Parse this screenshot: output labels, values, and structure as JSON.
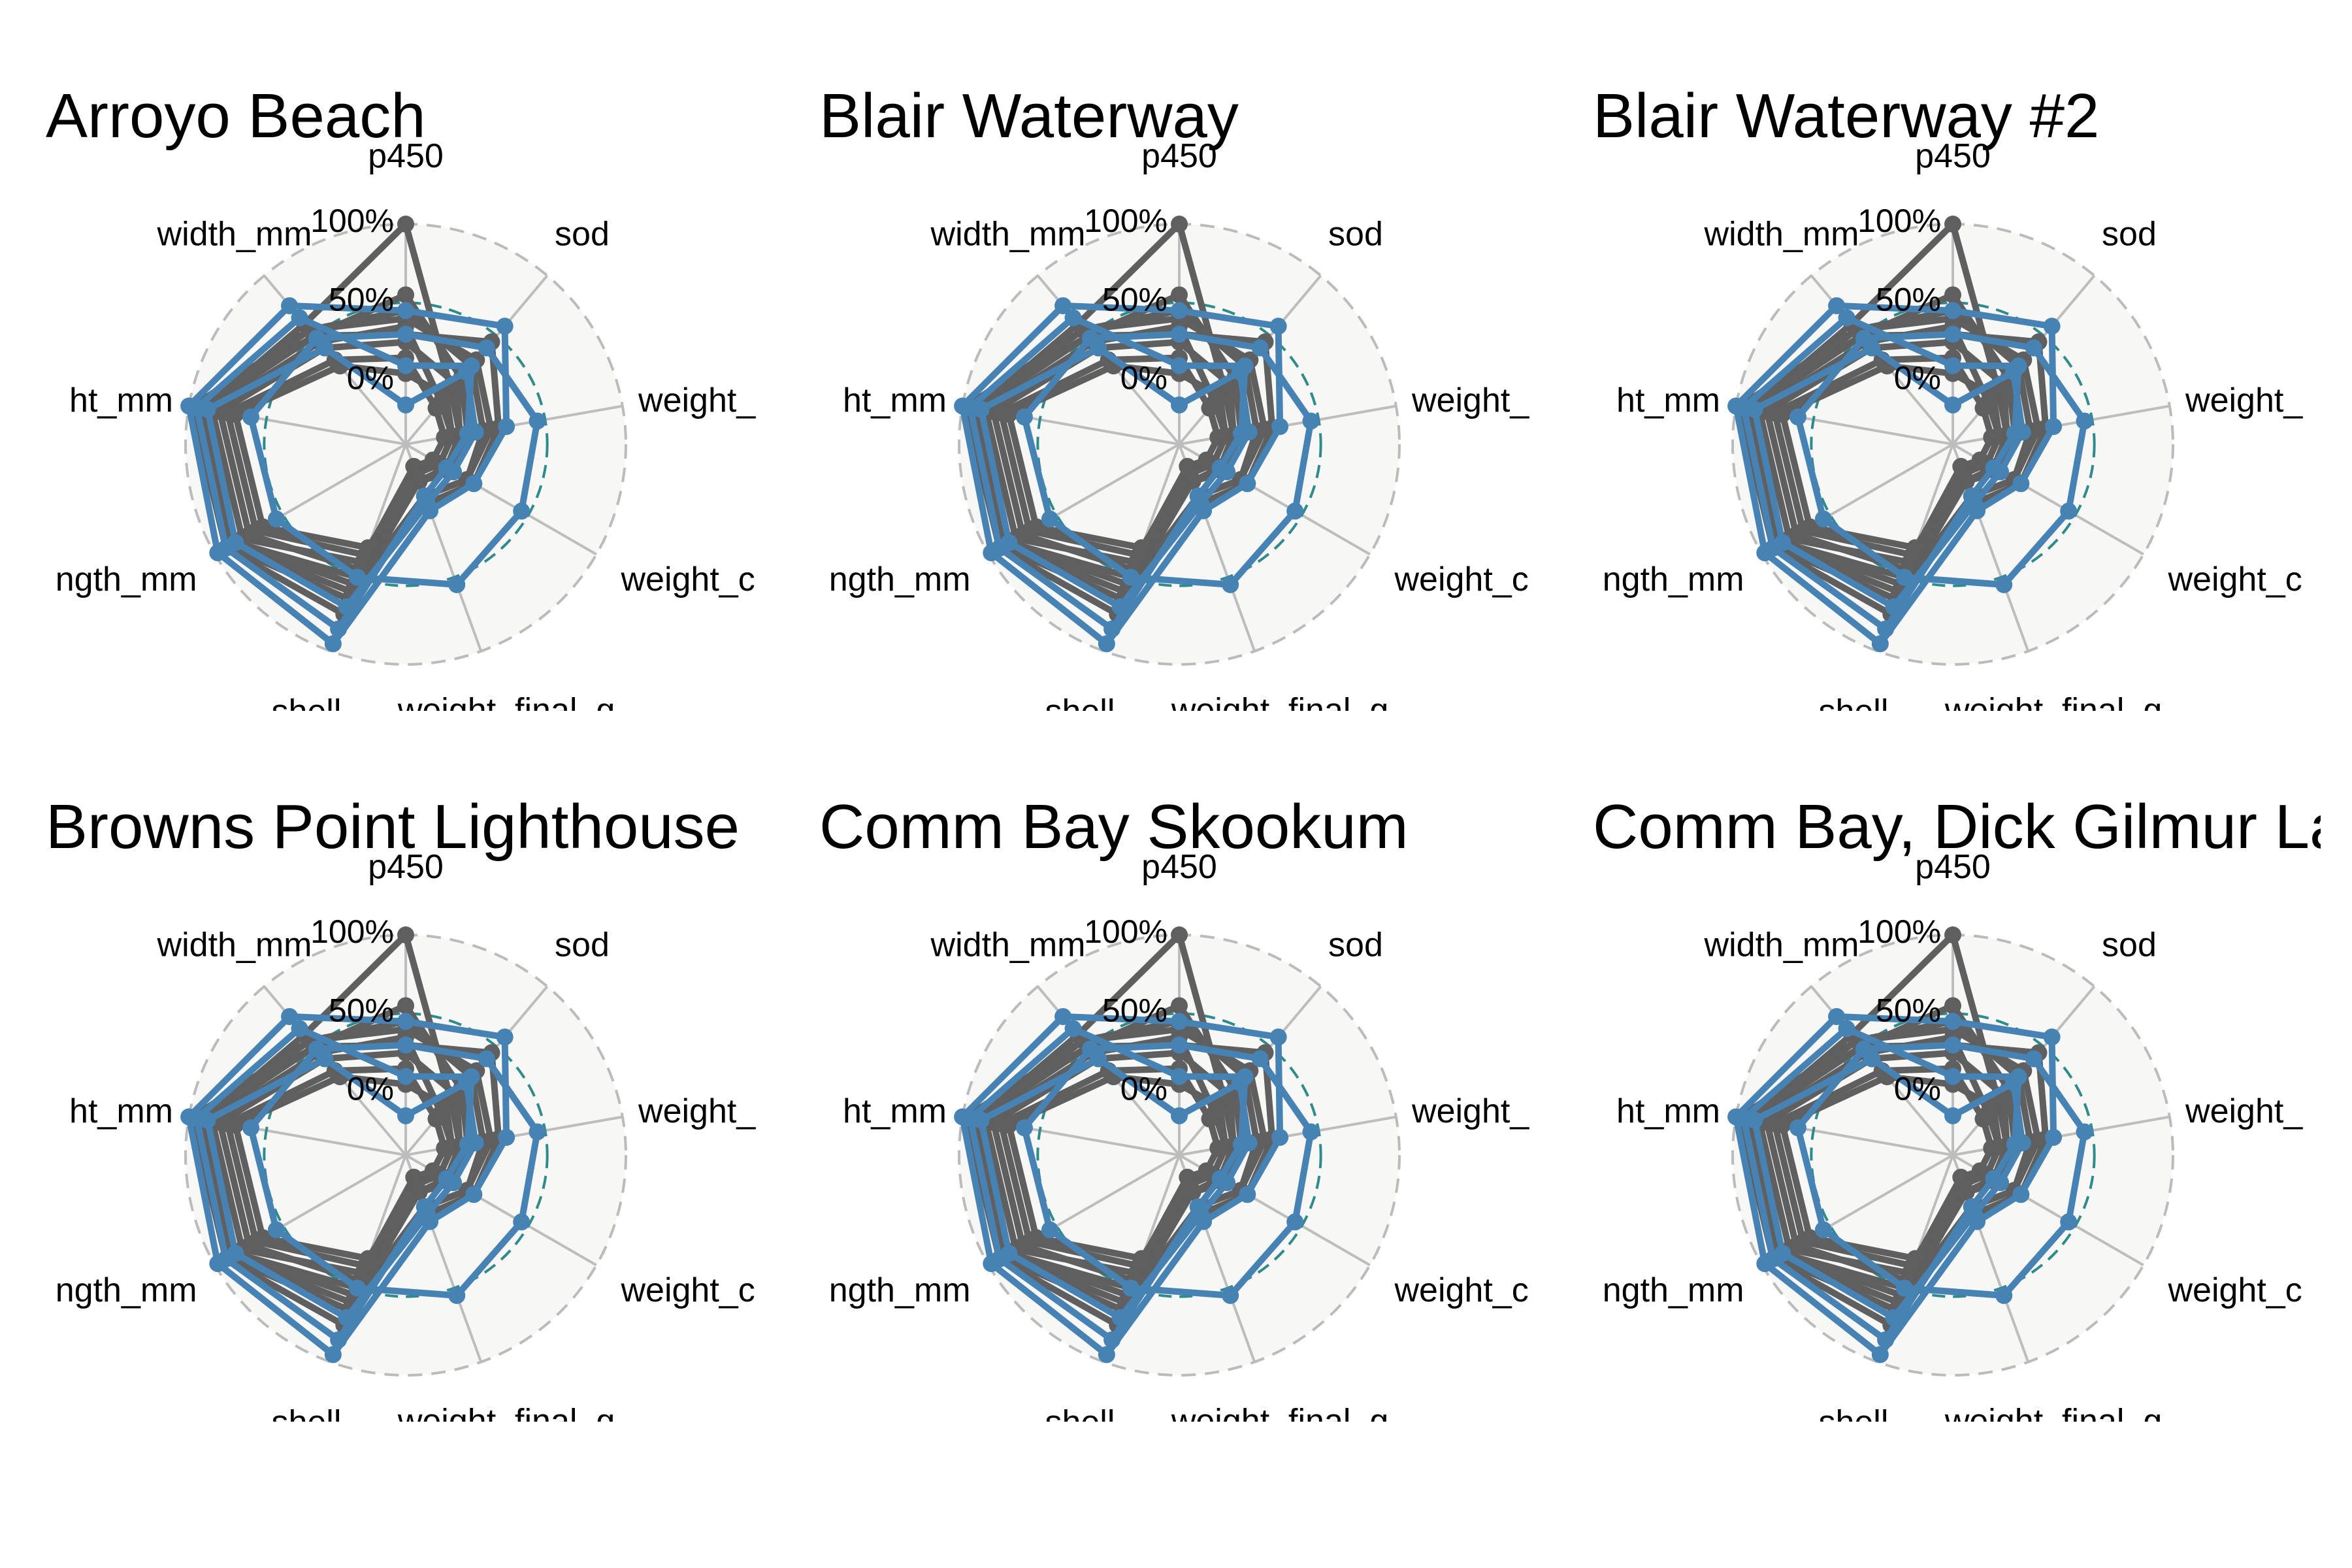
{
  "colors": {
    "background": "#f7f7f5",
    "grid": "#bdbdbd",
    "outer_ring": "#bbbbbb",
    "reference_ring": "#2e8b8b",
    "series_gray": "#5f5f5f",
    "series_blue": "#4682b4"
  },
  "chart_data": {
    "type": "radar",
    "axes": [
      "p450",
      "sod",
      "weight_initial_g",
      "weight_change_g",
      "weight_final_g",
      "shell",
      "length_mm",
      "height_mm",
      "width_mm"
    ],
    "axis_labels_visible": [
      "p450",
      "sod",
      "weight_",
      "weight_c",
      "weight_final_g",
      "shell",
      "ngth_mm",
      "ht_mm",
      "width_mm"
    ],
    "ring_labels": [
      "0%",
      "50%",
      "100%"
    ],
    "radial_range": [
      -0.4,
      1.0
    ],
    "reference_ring_value": 0.5,
    "panels": [
      {
        "title": "Arroyo Beach"
      },
      {
        "title": "Blair Waterway"
      },
      {
        "title": "Blair Waterway #2"
      },
      {
        "title": "Browns Point Lighthouse"
      },
      {
        "title": "Comm Bay Skookum"
      },
      {
        "title": "Comm Bay, Dick Gilmur La"
      }
    ],
    "series": [
      {
        "group": "background",
        "values": [
          1.0,
          0.05,
          -0.05,
          -0.1,
          -0.25,
          0.5,
          0.85,
          0.9,
          0.6
        ]
      },
      {
        "group": "background",
        "values": [
          0.55,
          0.15,
          0.0,
          -0.05,
          -0.15,
          0.65,
          0.9,
          0.95,
          0.5
        ]
      },
      {
        "group": "background",
        "values": [
          0.45,
          0.25,
          0.1,
          0.05,
          -0.05,
          0.75,
          0.92,
          0.98,
          0.55
        ]
      },
      {
        "group": "background",
        "values": [
          0.35,
          -0.05,
          -0.1,
          -0.15,
          -0.2,
          0.4,
          0.8,
          0.85,
          0.45
        ]
      },
      {
        "group": "background",
        "values": [
          0.25,
          0.1,
          -0.05,
          -0.1,
          -0.15,
          0.45,
          0.75,
          0.8,
          0.4
        ]
      },
      {
        "group": "background",
        "values": [
          0.15,
          -0.1,
          -0.15,
          -0.2,
          -0.25,
          0.35,
          0.7,
          0.75,
          0.3
        ]
      },
      {
        "group": "background",
        "values": [
          0.05,
          0.0,
          -0.1,
          -0.15,
          -0.2,
          0.3,
          0.65,
          0.7,
          0.25
        ]
      },
      {
        "group": "background",
        "values": [
          0.3,
          0.45,
          0.2,
          0.1,
          0.0,
          0.55,
          0.85,
          0.9,
          0.5
        ]
      },
      {
        "group": "background",
        "values": [
          0.4,
          0.3,
          0.15,
          0.05,
          -0.05,
          0.6,
          0.88,
          0.92,
          0.55
        ]
      },
      {
        "group": "highlight",
        "values": [
          0.45,
          0.58,
          0.25,
          0.1,
          0.05,
          0.95,
          0.98,
          1.0,
          0.75
        ]
      },
      {
        "group": "highlight",
        "values": [
          0.3,
          0.4,
          0.45,
          0.45,
          0.55,
          0.5,
          0.55,
          0.6,
          0.48
        ]
      },
      {
        "group": "highlight",
        "values": [
          0.1,
          0.25,
          0.0,
          -0.1,
          -0.05,
          0.85,
          0.92,
          0.95,
          0.65
        ]
      },
      {
        "group": "highlight",
        "values": [
          -0.15,
          0.2,
          0.05,
          -0.05,
          0.0,
          0.7,
          0.85,
          0.88,
          0.4
        ]
      }
    ]
  }
}
